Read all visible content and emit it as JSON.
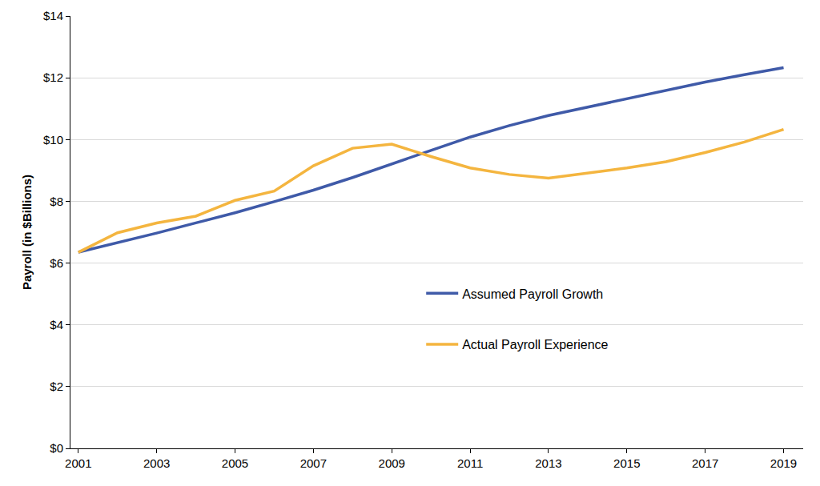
{
  "chart_data": {
    "type": "line",
    "y_label": "Payroll (in $Billions)",
    "x": [
      2001,
      2002,
      2003,
      2004,
      2005,
      2006,
      2007,
      2008,
      2009,
      2010,
      2011,
      2012,
      2013,
      2014,
      2015,
      2016,
      2017,
      2018,
      2019
    ],
    "series": [
      {
        "name": "Assumed Payroll Growth",
        "color": "#3F5AA8",
        "values": [
          6.35,
          6.65,
          6.97,
          7.3,
          7.63,
          7.99,
          8.36,
          8.77,
          9.22,
          9.65,
          10.08,
          10.45,
          10.78,
          11.05,
          11.32,
          11.6,
          11.86,
          12.1,
          12.33
        ]
      },
      {
        "name": "Actual Payroll Experience",
        "color": "#F4B53F",
        "values": [
          6.35,
          6.98,
          7.3,
          7.52,
          8.03,
          8.33,
          9.15,
          9.72,
          9.85,
          9.45,
          9.08,
          8.87,
          8.75,
          8.92,
          9.08,
          9.28,
          9.58,
          9.92,
          10.33
        ]
      }
    ],
    "xlim": [
      2000.8,
      2019.5
    ],
    "xticks": [
      2001,
      2003,
      2005,
      2007,
      2009,
      2011,
      2013,
      2015,
      2017,
      2019
    ],
    "ylim": [
      0,
      14
    ],
    "yticks": [
      {
        "value": 0,
        "label": "$0"
      },
      {
        "value": 2,
        "label": "$2"
      },
      {
        "value": 4,
        "label": "$4"
      },
      {
        "value": 6,
        "label": "$6"
      },
      {
        "value": 8,
        "label": "$8"
      },
      {
        "value": 10,
        "label": "$10"
      },
      {
        "value": 12,
        "label": "$12"
      },
      {
        "value": 14,
        "label": "$14"
      }
    ],
    "grid": true,
    "legend": "center"
  }
}
